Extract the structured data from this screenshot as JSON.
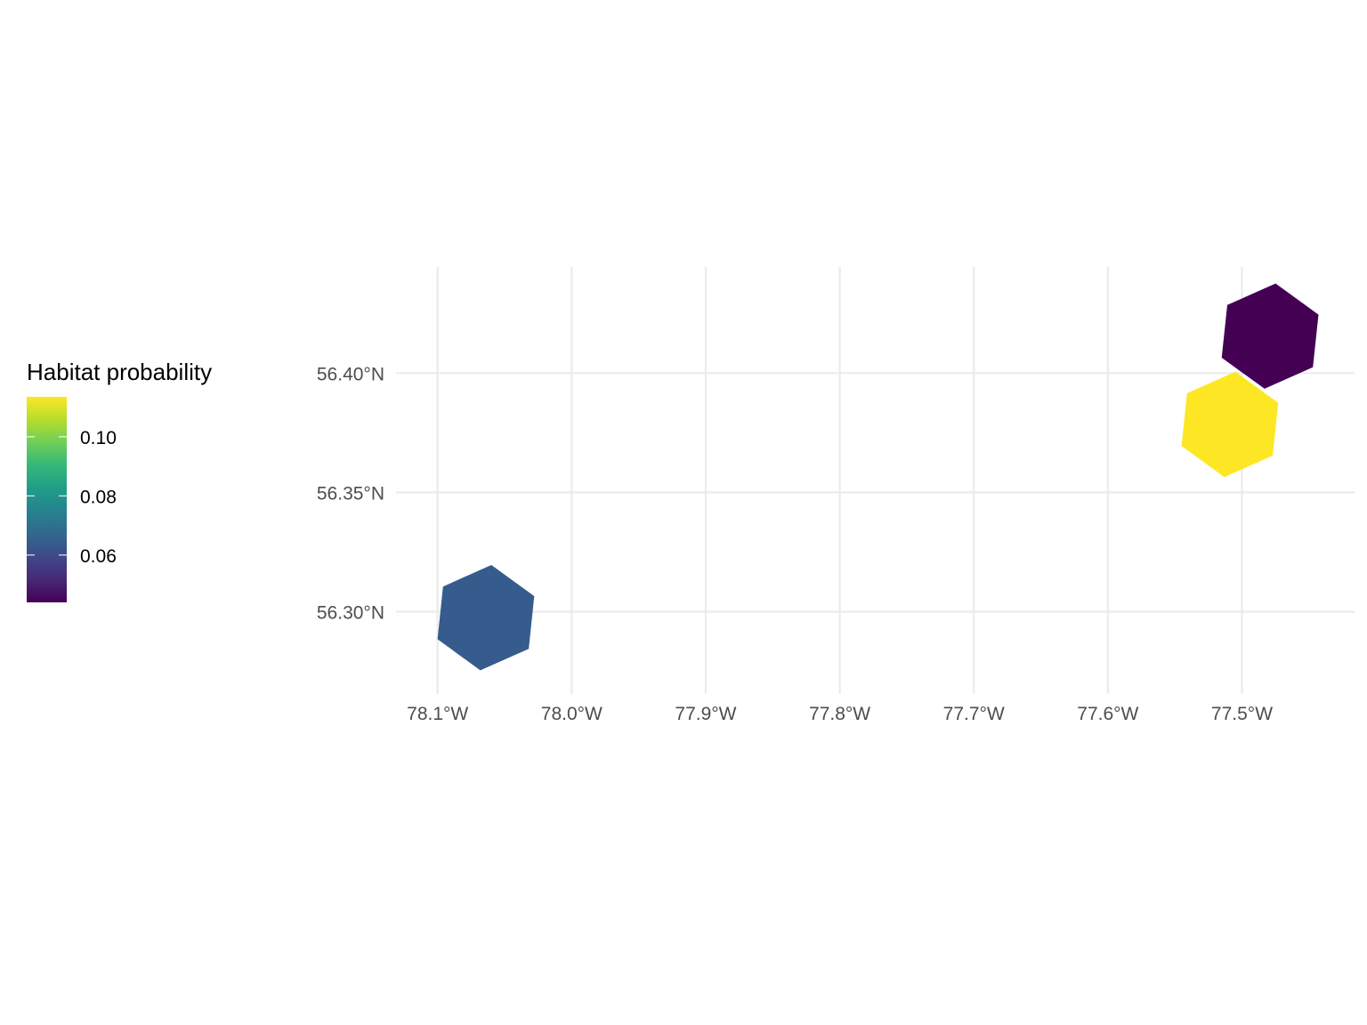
{
  "chart_data": {
    "type": "hexbin-map",
    "title": "",
    "xlabel": "",
    "ylabel": "",
    "x_range": [
      -78.131,
      -77.416
    ],
    "y_range": [
      56.2655,
      56.4445
    ],
    "x_ticks": [
      {
        "value": -78.1,
        "label": "78.1°W"
      },
      {
        "value": -78.0,
        "label": "78.0°W"
      },
      {
        "value": -77.9,
        "label": "77.9°W"
      },
      {
        "value": -77.8,
        "label": "77.8°W"
      },
      {
        "value": -77.7,
        "label": "77.7°W"
      },
      {
        "value": -77.6,
        "label": "77.6°W"
      },
      {
        "value": -77.5,
        "label": "77.5°W"
      }
    ],
    "y_ticks": [
      {
        "value": 56.3,
        "label": "56.30°N"
      },
      {
        "value": 56.35,
        "label": "56.35°N"
      },
      {
        "value": 56.4,
        "label": "56.40°N"
      }
    ],
    "grid": true,
    "cells": [
      {
        "lon": -78.064,
        "lat": 56.2975,
        "value": 0.058,
        "color": "#365c8d"
      },
      {
        "lon": -77.509,
        "lat": 56.3785,
        "value": 0.112,
        "color": "#fde725"
      },
      {
        "lon": -77.479,
        "lat": 56.4155,
        "value": 0.045,
        "color": "#440154"
      }
    ],
    "legend": {
      "title": "Habitat probability",
      "placement": "left",
      "range": [
        0.044,
        0.1135
      ],
      "breaks": [
        {
          "value": 0.06,
          "label": "0.06"
        },
        {
          "value": 0.08,
          "label": "0.08"
        },
        {
          "value": 0.1,
          "label": "0.10"
        }
      ],
      "colormap": "viridis",
      "stops": [
        "#440154",
        "#482878",
        "#3e4989",
        "#31688e",
        "#26828e",
        "#1f9e89",
        "#35b779",
        "#6ece58",
        "#b5de2b",
        "#fde725"
      ]
    }
  }
}
